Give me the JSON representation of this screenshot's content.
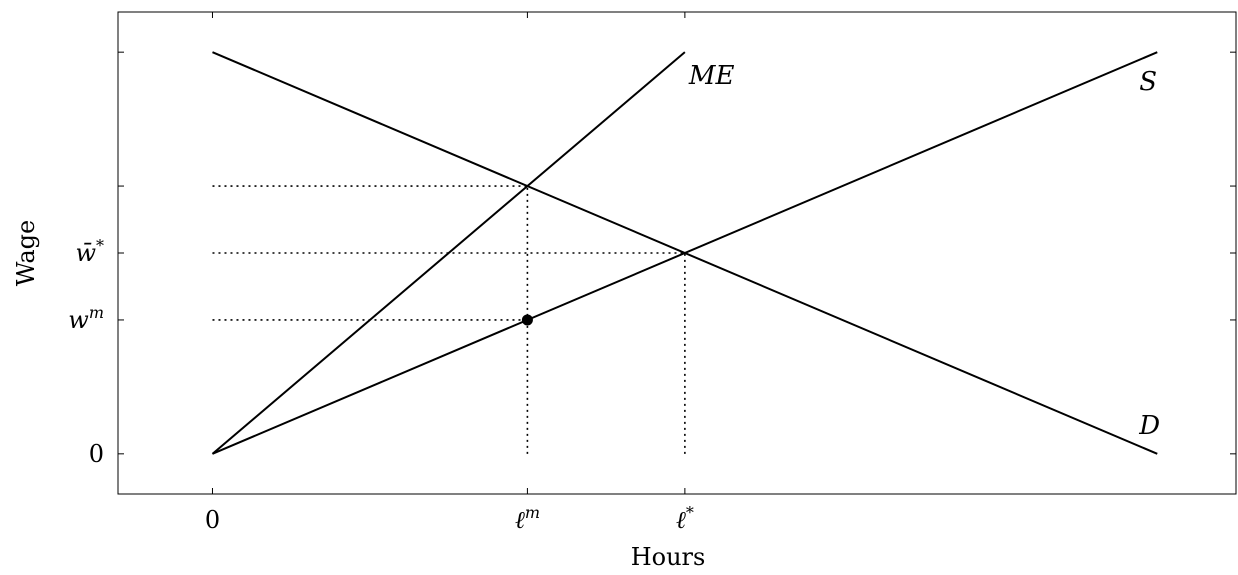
{
  "chart_data": {
    "type": "line",
    "title": "",
    "xlabel": "Hours",
    "ylabel": "Wage",
    "xlim": [
      -0.6,
      6.5
    ],
    "ylim": [
      -0.3,
      3.3
    ],
    "grid": false,
    "x_ticks": [
      {
        "value": 0,
        "label": "0"
      },
      {
        "value": 2,
        "label": "ℓ",
        "sup": "m"
      },
      {
        "value": 3,
        "label": "ℓ",
        "sup": "*"
      }
    ],
    "y_ticks": [
      {
        "value": 0,
        "label": "0"
      },
      {
        "value": 1,
        "label": "w",
        "sup": "m"
      },
      {
        "value": 1.5,
        "label": "w̄",
        "sup": "*"
      },
      {
        "value": 2,
        "label": ""
      },
      {
        "value": 3,
        "label": ""
      }
    ],
    "series": [
      {
        "name": "D",
        "x": [
          0,
          6
        ],
        "y": [
          3,
          0
        ]
      },
      {
        "name": "S",
        "x": [
          0,
          6
        ],
        "y": [
          0,
          3
        ]
      },
      {
        "name": "ME",
        "x": [
          0,
          3
        ],
        "y": [
          0,
          3
        ]
      }
    ],
    "reference_lines": [
      {
        "x": [
          0,
          2
        ],
        "y": [
          2,
          2
        ]
      },
      {
        "x": [
          0,
          3
        ],
        "y": [
          1.5,
          1.5
        ]
      },
      {
        "x": [
          0,
          2
        ],
        "y": [
          1,
          1
        ]
      },
      {
        "x": [
          2,
          2
        ],
        "y": [
          0,
          2
        ]
      },
      {
        "x": [
          3,
          3
        ],
        "y": [
          0,
          1.5
        ]
      }
    ],
    "points": [
      {
        "x": 2,
        "y": 1
      }
    ]
  }
}
